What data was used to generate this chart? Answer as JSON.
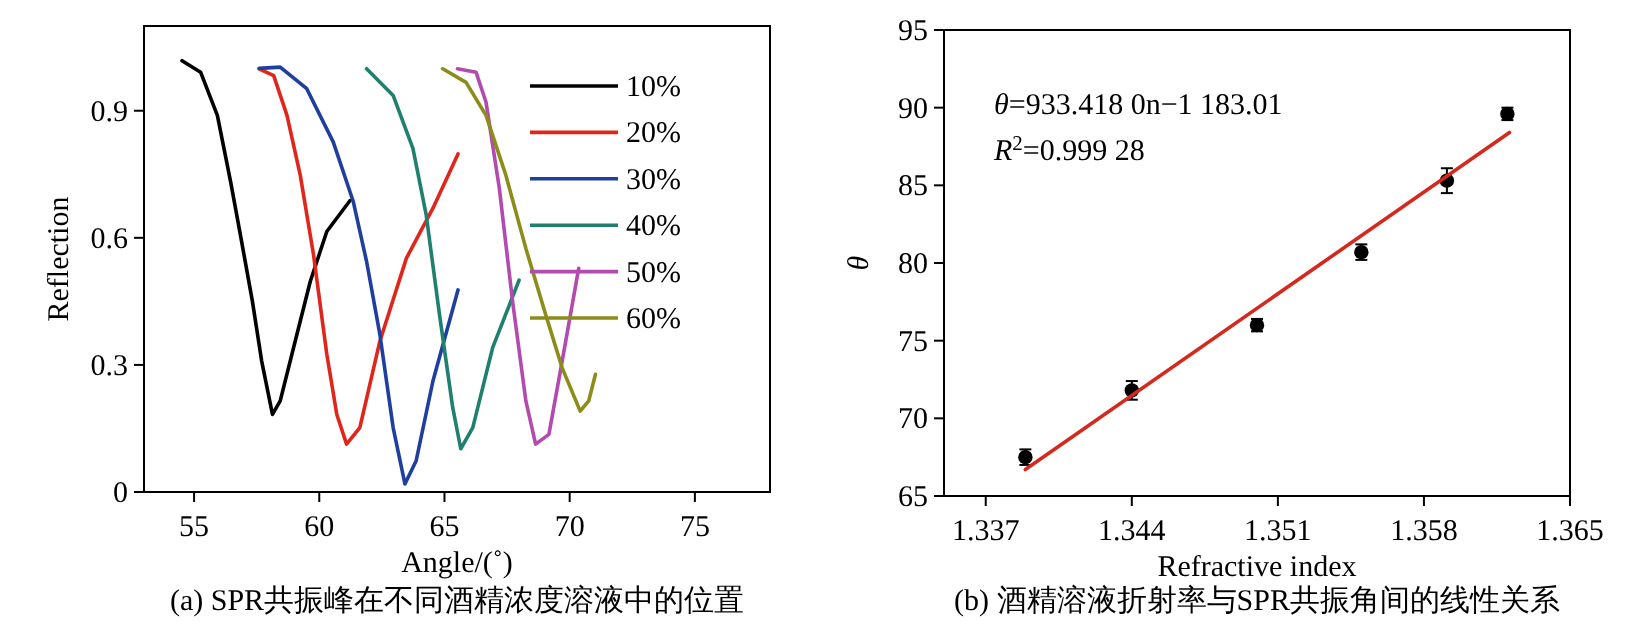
{
  "chart_data": [
    {
      "type": "line",
      "title": "(a) SPR共振峰在不同酒精浓度溶液中的位置",
      "xlabel": "Angle/(˚)",
      "ylabel": "Reflection",
      "xlim": [
        53,
        78
      ],
      "ylim": [
        0,
        1.1
      ],
      "xticks": [
        55,
        60,
        65,
        70,
        75
      ],
      "yticks": [
        0,
        0.3,
        0.6,
        0.9
      ],
      "legend": "top right",
      "series": [
        {
          "name": "10%",
          "color": "#000000",
          "x": [
            54.52,
            55.26,
            55.93,
            56.46,
            56.85,
            57.33,
            57.7,
            58.13,
            58.44,
            58.97,
            59.64,
            60.3,
            61.23
          ],
          "values": [
            1.018,
            0.991,
            0.889,
            0.732,
            0.607,
            0.45,
            0.309,
            0.183,
            0.215,
            0.34,
            0.497,
            0.615,
            0.688
          ]
        },
        {
          "name": "20%",
          "color": "#e0261b",
          "x": [
            57.6,
            58.18,
            58.71,
            59.24,
            59.77,
            60.3,
            60.7,
            61.09,
            61.62,
            62.42,
            63.48,
            64.54,
            65.54
          ],
          "values": [
            0.999,
            0.983,
            0.889,
            0.748,
            0.56,
            0.325,
            0.183,
            0.113,
            0.152,
            0.356,
            0.552,
            0.67,
            0.798
          ]
        },
        {
          "name": "30%",
          "color": "#1f3f9f",
          "x": [
            57.6,
            58.44,
            59.5,
            60.56,
            61.36,
            61.89,
            62.42,
            62.95,
            63.42,
            63.87,
            64.54,
            65.54
          ],
          "values": [
            1.0,
            1.003,
            0.952,
            0.826,
            0.685,
            0.544,
            0.372,
            0.152,
            0.019,
            0.074,
            0.262,
            0.477
          ]
        },
        {
          "name": "40%",
          "color": "#1f8070",
          "x": [
            61.89,
            62.95,
            63.74,
            64.27,
            64.8,
            65.33,
            65.65,
            66.13,
            66.92,
            67.98
          ],
          "values": [
            0.999,
            0.936,
            0.811,
            0.654,
            0.419,
            0.199,
            0.102,
            0.152,
            0.34,
            0.5
          ]
        },
        {
          "name": "50%",
          "color": "#b24ab0",
          "x": [
            65.52,
            66.26,
            66.66,
            67.19,
            67.72,
            68.25,
            68.64,
            69.17,
            69.7,
            70.36
          ],
          "values": [
            0.999,
            0.991,
            0.92,
            0.717,
            0.45,
            0.215,
            0.113,
            0.136,
            0.309,
            0.528
          ]
        },
        {
          "name": "60%",
          "color": "#8c8c1a",
          "x": [
            64.93,
            65.86,
            66.66,
            67.45,
            68.25,
            69.04,
            69.7,
            70.42,
            70.76,
            71.03
          ],
          "values": [
            0.999,
            0.967,
            0.889,
            0.748,
            0.575,
            0.419,
            0.293,
            0.191,
            0.215,
            0.278
          ]
        }
      ]
    },
    {
      "type": "scatter",
      "title": "(b) 酒精溶液折射率与SPR共振角间的线性关系",
      "xlabel": "Refractive index",
      "ylabel": "*θ*",
      "xlim": [
        1.335,
        1.365
      ],
      "ylim": [
        65,
        95
      ],
      "xticks": [
        1.337,
        1.344,
        1.351,
        1.358,
        1.365
      ],
      "yticks": [
        65,
        70,
        75,
        80,
        85,
        90,
        95
      ],
      "annotations": [
        "*θ*=933.418 0n−1 183.01",
        "*R*$^{2}$=0.999 28"
      ],
      "series": [
        {
          "color": "#000000",
          "marker": "circle",
          "x": [
            1.3389,
            1.344,
            1.35,
            1.355,
            1.3591,
            1.362
          ],
          "values": [
            67.5,
            71.8,
            76.0,
            80.7,
            85.3,
            89.6
          ],
          "errors": [
            0.5,
            0.6,
            0.4,
            0.5,
            0.8,
            0.4
          ]
        },
        {
          "type": "line",
          "color": "#d42a1e",
          "x": [
            1.3389,
            1.3621
          ],
          "values": [
            66.7,
            88.4
          ]
        }
      ]
    }
  ]
}
